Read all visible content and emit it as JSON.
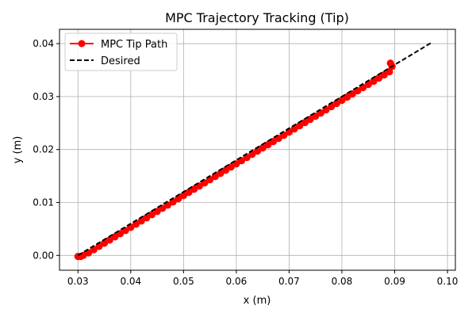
{
  "chart_data": {
    "type": "line",
    "title": "MPC Trajectory Tracking (Tip)",
    "xlabel": "x (m)",
    "ylabel": "y (m)",
    "xlim": [
      0.0265,
      0.1015
    ],
    "ylim": [
      -0.0028,
      0.0427
    ],
    "x_ticks": [
      0.03,
      0.04,
      0.05,
      0.06,
      0.07,
      0.08,
      0.09,
      0.1
    ],
    "x_tick_labels": [
      "0.03",
      "0.04",
      "0.05",
      "0.06",
      "0.07",
      "0.08",
      "0.09",
      "0.10"
    ],
    "y_ticks": [
      0.0,
      0.01,
      0.02,
      0.03,
      0.04
    ],
    "y_tick_labels": [
      "0.00",
      "0.01",
      "0.02",
      "0.03",
      "0.04"
    ],
    "grid": true,
    "legend_position": "top-left",
    "series": [
      {
        "name": "MPC Tip Path",
        "color": "#ff0000",
        "style": "solid-with-markers",
        "x": [
          0.03,
          0.0305,
          0.031,
          0.032,
          0.033,
          0.034,
          0.035,
          0.036,
          0.037,
          0.038,
          0.039,
          0.04,
          0.041,
          0.042,
          0.043,
          0.044,
          0.045,
          0.046,
          0.047,
          0.048,
          0.049,
          0.05,
          0.051,
          0.052,
          0.053,
          0.054,
          0.055,
          0.056,
          0.057,
          0.058,
          0.059,
          0.06,
          0.061,
          0.062,
          0.063,
          0.064,
          0.065,
          0.066,
          0.067,
          0.068,
          0.069,
          0.07,
          0.071,
          0.072,
          0.073,
          0.074,
          0.075,
          0.076,
          0.077,
          0.078,
          0.079,
          0.08,
          0.081,
          0.082,
          0.083,
          0.084,
          0.085,
          0.086,
          0.087,
          0.088,
          0.089,
          0.0895,
          0.0892
        ],
        "y": [
          -0.0002,
          -0.0002,
          0.0,
          0.0005,
          0.0011,
          0.0017,
          0.0023,
          0.0029,
          0.0035,
          0.0041,
          0.0047,
          0.0053,
          0.0059,
          0.0065,
          0.0071,
          0.0077,
          0.0083,
          0.0089,
          0.0095,
          0.0101,
          0.0107,
          0.0113,
          0.0119,
          0.0125,
          0.0131,
          0.0137,
          0.0143,
          0.0149,
          0.0155,
          0.0161,
          0.0167,
          0.0173,
          0.0179,
          0.0185,
          0.0191,
          0.0197,
          0.0203,
          0.0209,
          0.0215,
          0.0221,
          0.0227,
          0.0233,
          0.0239,
          0.0245,
          0.0251,
          0.0257,
          0.0263,
          0.0269,
          0.0275,
          0.0281,
          0.0287,
          0.0293,
          0.0299,
          0.0305,
          0.0311,
          0.0317,
          0.0323,
          0.0329,
          0.0335,
          0.0341,
          0.0347,
          0.0357,
          0.0363
        ]
      },
      {
        "name": "Desired",
        "color": "#000000",
        "style": "dashed",
        "x": [
          0.03,
          0.097
        ],
        "y": [
          0.0,
          0.0402
        ]
      }
    ]
  }
}
